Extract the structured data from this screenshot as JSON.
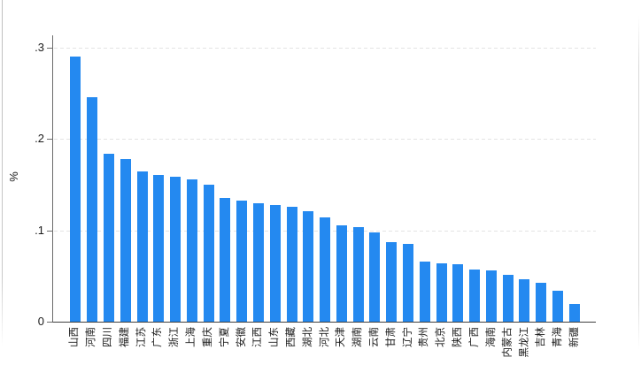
{
  "figure": {
    "colors": {
      "bar": "#2489f0",
      "axis": "#6b6b6b",
      "baseline": "#3f3f3f",
      "grid": "#e3e3e3",
      "text": "#1a1a1a",
      "background": "#ffffff"
    }
  },
  "chart_data": {
    "type": "bar",
    "title": "",
    "xlabel": "",
    "ylabel": "%",
    "ylim": [
      0,
      0.3133
    ],
    "grid": "horizontal-dashed",
    "legend": "none",
    "bar_order": "descending",
    "yticks": [
      {
        "value": 0,
        "label": "0"
      },
      {
        "value": 0.1,
        "label": ".1"
      },
      {
        "value": 0.2,
        "label": ".2"
      },
      {
        "value": 0.3,
        "label": ".3"
      }
    ],
    "categories": [
      "山西",
      "河南",
      "四川",
      "福建",
      "江苏",
      "广东",
      "浙江",
      "上海",
      "重庆",
      "宁夏",
      "安徽",
      "江西",
      "山东",
      "西藏",
      "湖北",
      "河北",
      "天津",
      "湖南",
      "云南",
      "甘肃",
      "辽宁",
      "贵州",
      "北京",
      "陕西",
      "广西",
      "海南",
      "内蒙古",
      "黑龙江",
      "吉林",
      "青海",
      "新疆"
    ],
    "values": [
      0.29,
      0.246,
      0.184,
      0.178,
      0.164,
      0.161,
      0.159,
      0.156,
      0.15,
      0.135,
      0.132,
      0.13,
      0.128,
      0.126,
      0.121,
      0.114,
      0.105,
      0.103,
      0.098,
      0.087,
      0.085,
      0.066,
      0.064,
      0.063,
      0.057,
      0.056,
      0.051,
      0.046,
      0.043,
      0.034,
      0.019
    ]
  }
}
